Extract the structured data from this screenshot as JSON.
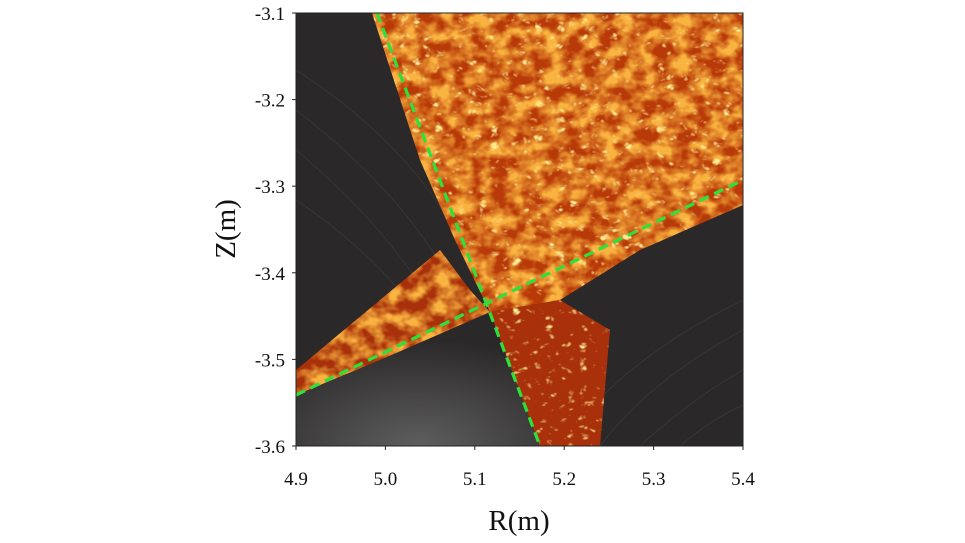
{
  "figure": {
    "xlabel": "R(m)",
    "ylabel": "Z(m)",
    "xlim": [
      4.9,
      5.4
    ],
    "ylim": [
      -3.6,
      -3.1
    ],
    "x_ticks": [
      "4.9",
      "5.0",
      "5.1",
      "5.2",
      "5.3",
      "5.4"
    ],
    "y_ticks": [
      "-3.1",
      "-3.2",
      "-3.3",
      "-3.4",
      "-3.5",
      "-3.6"
    ],
    "colors": {
      "background": "#2a2828",
      "turbulence_core": "#f08a10",
      "turbulence_bright": "#ffd84a",
      "turbulence_dark": "#8a1a05",
      "separatrix": "#2ee03a"
    },
    "separatrix_style": "dashed"
  }
}
